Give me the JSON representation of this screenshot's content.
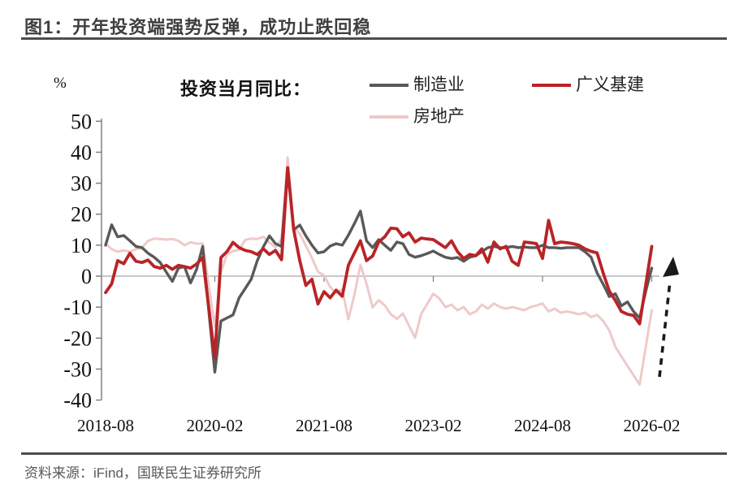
{
  "header": {
    "title": "图1：开年投资端强势反弹，成功止跌回稳"
  },
  "chart": {
    "unit_label": "%",
    "subtitle": "投资当月同比：",
    "legend": [
      {
        "label": "制造业",
        "color": "#595959"
      },
      {
        "label": "广义基建",
        "color": "#b92427"
      },
      {
        "label": "房地产",
        "color": "#eecac8"
      }
    ]
  },
  "footer": {
    "source": "资料来源：iFind，国联民生证券研究所"
  },
  "chart_data": {
    "type": "line",
    "title": "投资当月同比：",
    "unit": "%",
    "ylim": [
      -40,
      50
    ],
    "ytick_values": [
      50,
      40,
      30,
      20,
      10,
      0,
      -10,
      -20,
      -30,
      -40
    ],
    "grid": "zero-line-only",
    "legend_position": "top",
    "x_ticks": [
      {
        "label": "2018-08",
        "month_index": 0
      },
      {
        "label": "2020-02",
        "month_index": 18
      },
      {
        "label": "2021-08",
        "month_index": 36
      },
      {
        "label": "2023-02",
        "month_index": 54
      },
      {
        "label": "2024-08",
        "month_index": 72
      },
      {
        "label": "2026-02",
        "month_index": 90
      }
    ],
    "months": [
      "2018-08",
      "2018-09",
      "2018-10",
      "2018-11",
      "2018-12",
      "2019-01",
      "2019-02",
      "2019-03",
      "2019-04",
      "2019-05",
      "2019-06",
      "2019-07",
      "2019-08",
      "2019-09",
      "2019-10",
      "2019-11",
      "2019-12",
      "2020-01",
      "2020-02",
      "2020-03",
      "2020-04",
      "2020-05",
      "2020-06",
      "2020-07",
      "2020-08",
      "2020-09",
      "2020-10",
      "2020-11",
      "2020-12",
      "2021-01",
      "2021-02",
      "2021-03",
      "2021-04",
      "2021-05",
      "2021-06",
      "2021-07",
      "2021-08",
      "2021-09",
      "2021-10",
      "2021-11",
      "2021-12",
      "2022-01",
      "2022-02",
      "2022-03",
      "2022-04",
      "2022-05",
      "2022-06",
      "2022-07",
      "2022-08",
      "2022-09",
      "2022-10",
      "2022-11",
      "2022-12",
      "2023-01",
      "2023-02",
      "2023-03",
      "2023-04",
      "2023-05",
      "2023-06",
      "2023-07",
      "2023-08",
      "2023-09",
      "2023-10",
      "2023-11",
      "2023-12",
      "2024-01",
      "2024-02",
      "2024-03",
      "2024-04",
      "2024-05",
      "2024-06",
      "2024-07",
      "2024-08",
      "2024-09",
      "2024-10",
      "2024-11",
      "2024-12",
      "2025-01",
      "2025-02",
      "2025-03",
      "2025-04",
      "2025-05",
      "2025-06",
      "2025-07",
      "2025-08",
      "2025-09",
      "2025-10",
      "2025-11",
      "2025-12",
      "2026-01",
      "2026-02"
    ],
    "series": [
      {
        "name": "制造业",
        "color": "#595959",
        "width": 3.4,
        "values": [
          10,
          16.6,
          12.7,
          13.1,
          11.4,
          9.6,
          9.2,
          7.4,
          6.1,
          4.4,
          1.3,
          -1.7,
          2.6,
          3.1,
          -2.2,
          2.2,
          9.6,
          -11,
          -31,
          -14.5,
          -13.5,
          -12.5,
          -7,
          -4,
          -1,
          5,
          9.5,
          13,
          10.5,
          9.6,
          35,
          15,
          16.5,
          13,
          10,
          7.5,
          7.9,
          9.7,
          10.5,
          10,
          13.2,
          17,
          21,
          11.4,
          9.2,
          11.8,
          10,
          8.3,
          11,
          10.5,
          7,
          6.1,
          6.6,
          7.3,
          8.1,
          7,
          6.1,
          5.7,
          6,
          4.8,
          6.1,
          6.6,
          7.9,
          9.2,
          9.6,
          9.2,
          9.2,
          9.6,
          9.2,
          9.4,
          9.2,
          9.2,
          10,
          9.2,
          9.2,
          9,
          9.2,
          9.2,
          9.2,
          7.9,
          6.1,
          1,
          -2.6,
          -6.6,
          -5.7,
          -9.6,
          -8.3,
          -11.4,
          -13.5,
          -5,
          2.6
        ]
      },
      {
        "name": "广义基建",
        "color": "#b92427",
        "width": 3.8,
        "values": [
          -5.3,
          -2.5,
          5,
          4,
          7.4,
          4.8,
          4.4,
          5.2,
          3.1,
          2.6,
          3.5,
          2.2,
          3.5,
          3.1,
          2.6,
          3.9,
          6,
          -10,
          -26.3,
          6,
          7.9,
          10.9,
          9.2,
          8.3,
          7.9,
          7,
          8.8,
          7,
          8.3,
          5.3,
          35,
          15,
          5,
          -3,
          -1,
          -9,
          -5,
          -7,
          -4.5,
          -6.5,
          3.5,
          7.5,
          11.4,
          5,
          6.5,
          11,
          12.7,
          15.5,
          15.3,
          12.7,
          14,
          11,
          12.3,
          12,
          11.8,
          10.5,
          9.2,
          11.4,
          7.9,
          5.7,
          7,
          6.6,
          8.8,
          4.5,
          11,
          8.8,
          9.6,
          4.8,
          3.5,
          11,
          10.8,
          10.5,
          5.7,
          18,
          10.5,
          11,
          10.8,
          10.5,
          10,
          8.8,
          8,
          7.5,
          1,
          -4.8,
          -7.9,
          -11.4,
          -12.3,
          -12.7,
          -15.4,
          -3,
          9.6
        ]
      },
      {
        "name": "房地产",
        "color": "#eecac8",
        "width": 3,
        "values": [
          10.5,
          8.7,
          7.9,
          8.3,
          7.9,
          8.7,
          9.2,
          11.4,
          12.1,
          12,
          11.8,
          12,
          11.4,
          10,
          10.9,
          10.5,
          10.5,
          -3,
          -16.3,
          1.2,
          7,
          8.1,
          8.5,
          11.7,
          12.1,
          12,
          12.7,
          10.9,
          9.3,
          12,
          38.3,
          16,
          13.7,
          9.8,
          5.9,
          1.4,
          0.3,
          -3.5,
          -5.4,
          -4.3,
          -13.9,
          -6,
          3.7,
          -2.4,
          -10.1,
          -7.8,
          -9.4,
          -12.3,
          -13.8,
          -12.1,
          -16,
          -19.9,
          -12.2,
          -9,
          -5.7,
          -7.2,
          -10,
          -9.2,
          -11,
          -10,
          -12.3,
          -11.4,
          -9.2,
          -10.5,
          -8.8,
          -10,
          -10.5,
          -10,
          -10.5,
          -11,
          -10,
          -9.5,
          -8.8,
          -11.4,
          -10.5,
          -11.8,
          -11.4,
          -11.8,
          -12.3,
          -11.8,
          -13.2,
          -12.5,
          -14.5,
          -17.5,
          -22.8,
          -25.9,
          -29,
          -32,
          -35,
          -23,
          -11
        ]
      }
    ],
    "draw_order": [
      2,
      0,
      1
    ],
    "annotation_arrow": {
      "type": "dashed-arrow",
      "direction": "up",
      "color": "#1a1a1a",
      "meaning": "rebound at start of 2026"
    }
  }
}
